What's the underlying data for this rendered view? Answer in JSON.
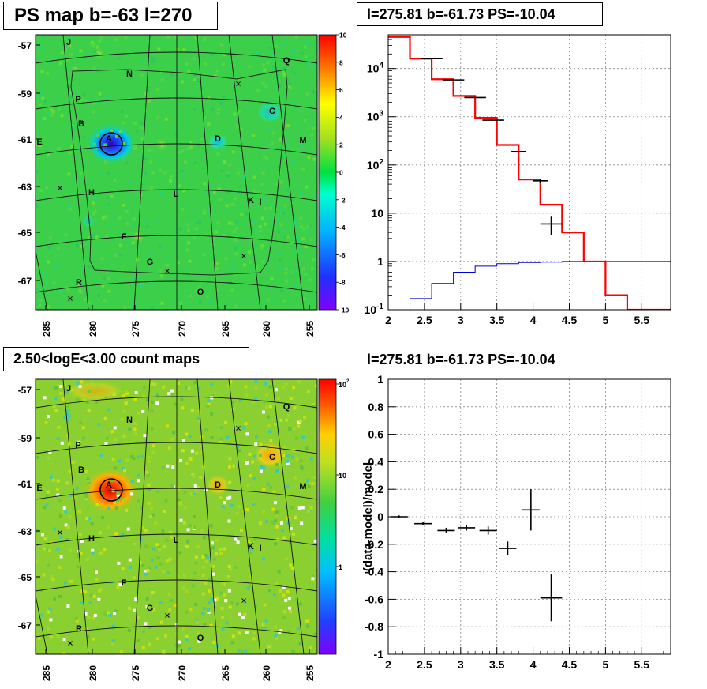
{
  "titles": {
    "ps_map": "PS map b=-63 l=270",
    "spectrum": "l=275.81 b=-61.73 PS=-10.04",
    "count_map": "2.50<logE<3.00 count maps",
    "residual": "l=275.81 b=-61.73 PS=-10.04"
  },
  "colors": {
    "map_background": "#3cd04a",
    "data_marker": "#000000",
    "model_total": "#ff0000",
    "model_background": "#0000cc"
  },
  "chart_data": [
    {
      "type": "heatmap",
      "name": "ps-map",
      "title": "PS map b=-63 l=270",
      "x_ticks": [
        "285",
        "280",
        "275",
        "270",
        "265",
        "260",
        "255"
      ],
      "y_ticks": [
        "-57",
        "-59",
        "-61",
        "-63",
        "-65",
        "-67"
      ],
      "colorbar": {
        "ticks": [
          "10",
          "8",
          "6",
          "4",
          "2",
          "0",
          "-2",
          "-4",
          "-6",
          "-8",
          "-10"
        ],
        "range": [
          -10,
          10
        ]
      },
      "source_labels": [
        "A",
        "B",
        "C",
        "D",
        "E",
        "F",
        "G",
        "H",
        "I",
        "J",
        "K",
        "L",
        "M",
        "N",
        "O",
        "P",
        "Q",
        "R"
      ],
      "hotspots": [
        {
          "label": "A",
          "l": 277.5,
          "b": -61.2,
          "ps": -9
        },
        {
          "label": "C",
          "l": 260,
          "b": -60.5,
          "ps": -2
        },
        {
          "label": "D",
          "l": 265.5,
          "b": -61.1,
          "ps": -3
        }
      ]
    },
    {
      "type": "line",
      "name": "spectrum",
      "title": "l=275.81 b=-61.73 PS=-10.04",
      "log_y": true,
      "xlim": [
        2,
        6
      ],
      "ylim": [
        0.1,
        50000
      ],
      "x_ticks": [
        "2",
        "2.5",
        "3",
        "3.5",
        "4",
        "4.5",
        "5",
        "5.5"
      ],
      "y_ticks": [
        "10^-1",
        "1",
        "10",
        "10^2",
        "10^3",
        "10^4"
      ],
      "grid": true,
      "bin_edges": [
        2.0,
        2.3,
        2.6,
        2.9,
        3.2,
        3.5,
        3.8,
        4.1,
        4.4,
        4.7,
        5.0,
        5.3,
        5.6,
        5.9
      ],
      "model_total": [
        45000,
        16000,
        6000,
        2700,
        950,
        260,
        50,
        15,
        4,
        1,
        0.2,
        0.1,
        0.1
      ],
      "model_background": [
        0.1,
        0.17,
        0.35,
        0.6,
        0.8,
        0.9,
        0.95,
        0.97,
        1,
        1,
        1,
        1,
        1
      ],
      "data_points": [
        {
          "x": 2.6,
          "y": 16000,
          "xerr": 0.15,
          "yerr": 0
        },
        {
          "x": 2.9,
          "y": 5800,
          "xerr": 0.15,
          "yerr": 0
        },
        {
          "x": 3.2,
          "y": 2500,
          "xerr": 0.15,
          "yerr": 0
        },
        {
          "x": 3.45,
          "y": 850,
          "xerr": 0.15,
          "yerr": 0
        },
        {
          "x": 3.8,
          "y": 190,
          "xerr": 0.1,
          "yerr": 0
        },
        {
          "x": 4.1,
          "y": 47,
          "xerr": 0.1,
          "yerr": 5
        },
        {
          "x": 4.25,
          "y": 6,
          "xerr": 0.15,
          "yerr": 2.5
        }
      ]
    },
    {
      "type": "heatmap",
      "name": "count-map",
      "title": "2.50<logE<3.00 count maps",
      "x_ticks": [
        "285",
        "280",
        "275",
        "270",
        "265",
        "260",
        "255"
      ],
      "y_ticks": [
        "-57",
        "-59",
        "-61",
        "-63",
        "-65",
        "-67"
      ],
      "colorbar": {
        "ticks": [
          "10^2",
          "10",
          "1"
        ],
        "log": true
      },
      "source_labels": [
        "A",
        "B",
        "C",
        "D",
        "E",
        "F",
        "G",
        "H",
        "I",
        "J",
        "K",
        "L",
        "M",
        "N",
        "O",
        "P",
        "Q",
        "R"
      ]
    },
    {
      "type": "scatter",
      "name": "residual",
      "title": "l=275.81 b=-61.73 PS=-10.04",
      "ylabel": "(data-model)/model",
      "xlim": [
        2,
        6
      ],
      "ylim": [
        -1,
        1
      ],
      "x_ticks": [
        "2",
        "2.5",
        "3",
        "3.5",
        "4",
        "4.5",
        "5",
        "5.5"
      ],
      "y_ticks": [
        "-1",
        "-0.8",
        "-0.6",
        "-0.4",
        "-0.2",
        "0",
        "0.2",
        "0.4",
        "0.6",
        "0.8",
        "1"
      ],
      "grid": true,
      "points": [
        {
          "x": 2.15,
          "y": 0.0,
          "xerr": 0.12,
          "yerr": 0.01
        },
        {
          "x": 2.48,
          "y": -0.05,
          "xerr": 0.12,
          "yerr": 0.01
        },
        {
          "x": 2.8,
          "y": -0.1,
          "xerr": 0.12,
          "yerr": 0.02
        },
        {
          "x": 3.08,
          "y": -0.08,
          "xerr": 0.12,
          "yerr": 0.02
        },
        {
          "x": 3.38,
          "y": -0.1,
          "xerr": 0.12,
          "yerr": 0.03
        },
        {
          "x": 3.65,
          "y": -0.23,
          "xerr": 0.12,
          "yerr": 0.05
        },
        {
          "x": 3.97,
          "y": 0.05,
          "xerr": 0.12,
          "yerr": 0.15
        },
        {
          "x": 4.25,
          "y": -0.59,
          "xerr": 0.15,
          "yerr": 0.17
        }
      ]
    }
  ]
}
